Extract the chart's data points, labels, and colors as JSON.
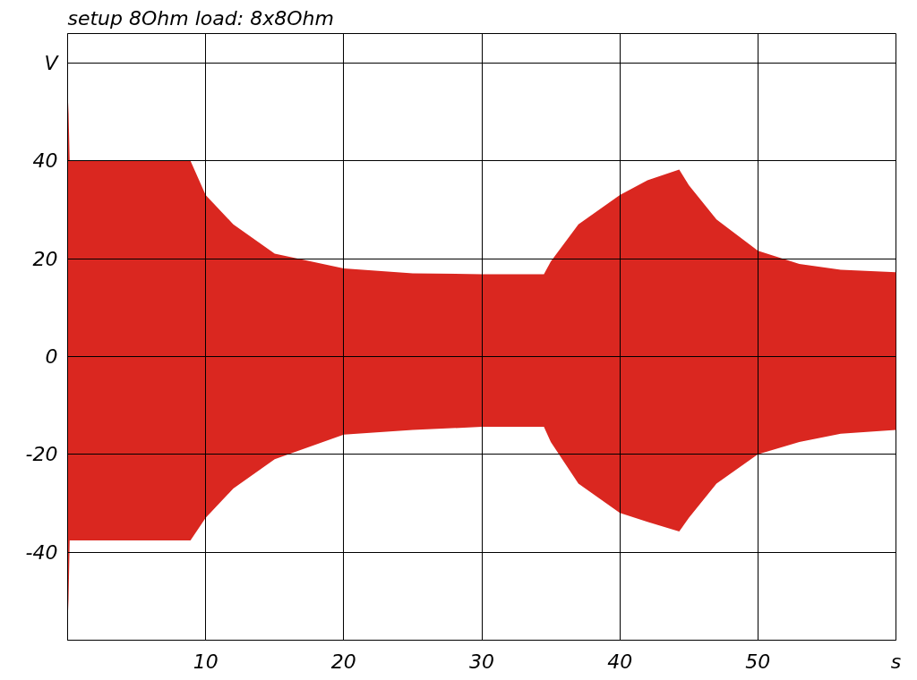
{
  "chart_data": {
    "type": "area",
    "title": "setup 8Ohm load: 8x8Ohm",
    "x": [
      0,
      0.05,
      0.15,
      0.3,
      8.9,
      10,
      12,
      15,
      20,
      25,
      30,
      34.5,
      35,
      37,
      40,
      42,
      44.3,
      45,
      47,
      50,
      53,
      56,
      60
    ],
    "series": [
      {
        "color": "#da2720",
        "values": [
          45,
          52,
          40,
          40,
          40,
          33,
          27,
          21,
          18,
          17,
          16.8,
          16.8,
          19.4,
          27,
          33,
          36,
          38.2,
          35,
          28,
          21.6,
          18.9,
          17.7,
          17.2
        ]
      },
      {
        "color": "#da2720",
        "values": [
          -45,
          -52,
          -37.6,
          -37.6,
          -37.6,
          -33,
          -27,
          -21,
          -16,
          -15,
          -14.4,
          -14.4,
          -17.5,
          -26,
          -32,
          -33.8,
          -35.8,
          -33,
          -26,
          -20,
          -17.5,
          -15.8,
          -15
        ]
      }
    ],
    "xlim": [
      0,
      60
    ],
    "ylim": [
      -58,
      66
    ],
    "xticks": [
      10,
      20,
      30,
      40,
      50,
      {
        "value": 60,
        "label": "s"
      }
    ],
    "yticks": [
      -40,
      -20,
      0,
      20,
      40,
      {
        "value": 60,
        "label": "V"
      }
    ],
    "grid": true
  }
}
